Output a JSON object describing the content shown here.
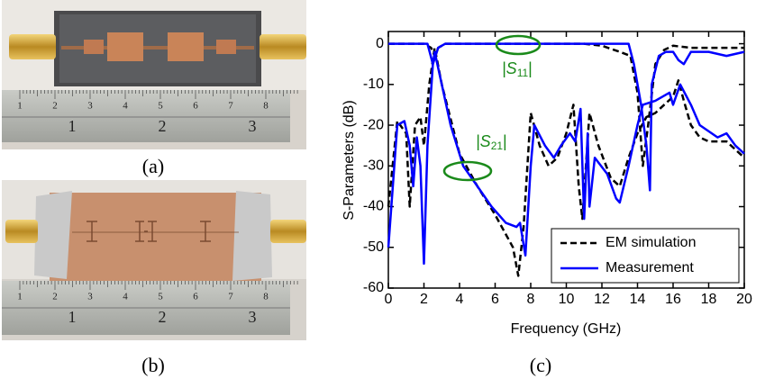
{
  "photos": [
    {
      "caption": "(a)",
      "ruler_cm": [
        "1",
        "2",
        "3",
        "4",
        "5",
        "6",
        "7",
        "8"
      ],
      "ruler_in": [
        "1",
        "2",
        "3"
      ]
    },
    {
      "caption": "(b)",
      "ruler_cm": [
        "1",
        "2",
        "3",
        "4",
        "5",
        "6",
        "7",
        "8"
      ],
      "ruler_in": [
        "1",
        "2",
        "3"
      ]
    }
  ],
  "chart_data": {
    "type": "line",
    "caption": "(c)",
    "x_label": "Frequency (GHz)",
    "y_label": "S-Parameters (dB)",
    "xlim": [
      0,
      20
    ],
    "ylim": [
      -60,
      3
    ],
    "xticks": [
      0,
      2,
      4,
      6,
      8,
      10,
      12,
      14,
      16,
      18,
      20
    ],
    "yticks": [
      -60,
      -50,
      -40,
      -30,
      -20,
      -10,
      0
    ],
    "legend": "lower right",
    "annotations": [
      {
        "prefix": "|S",
        "sub": "11",
        "suffix": "|",
        "color": "#1a8a1a"
      },
      {
        "prefix": "|S",
        "sub": "21",
        "suffix": "|",
        "color": "#1a8a1a"
      }
    ],
    "series": [
      {
        "name": "EM simulation",
        "color": "#000000",
        "dashed": true,
        "curves": [
          {
            "x": [
              0,
              1,
              2,
              2.4,
              2.6,
              2.8,
              3.2,
              5,
              8,
              11,
              12,
              13,
              13.6,
              14,
              14.3,
              14.6,
              15,
              15.5,
              16,
              17,
              18,
              19,
              20
            ],
            "values": [
              0,
              0,
              0,
              -1,
              -3,
              -1,
              0,
              0,
              0,
              0,
              -0.5,
              -2,
              -3,
              -12,
              -30,
              -20,
              -5,
              -1.5,
              -0.5,
              -1,
              -1,
              -1,
              -1
            ]
          },
          {
            "x": [
              0,
              0.5,
              1,
              1.2,
              1.5,
              1.8,
              2,
              2.3,
              2.6,
              3,
              4,
              5,
              6,
              7,
              7.3,
              7.6,
              8,
              8.5,
              9,
              9.5,
              10,
              10.4,
              10.7,
              10.9,
              11.3,
              11.8,
              12.5,
              13,
              13.5,
              14,
              14.5,
              15,
              15.5,
              16,
              16.3,
              16.6,
              17,
              17.5,
              18,
              19,
              20
            ],
            "values": [
              -40,
              -19,
              -22,
              -40,
              -20,
              -18,
              -25,
              -10,
              -1,
              -10,
              -27,
              -35,
              -42,
              -50,
              -57,
              -45,
              -17,
              -25,
              -30,
              -28,
              -22,
              -15,
              -35,
              -43,
              -17,
              -25,
              -33,
              -35,
              -28,
              -22,
              -18,
              -17,
              -15,
              -13,
              -9,
              -14,
              -20,
              -23,
              -24,
              -24,
              -28
            ]
          }
        ]
      },
      {
        "name": "Measurement",
        "color": "#0000ff",
        "dashed": false,
        "curves": [
          {
            "x": [
              0,
              1,
              2,
              2.2,
              2.5,
              2.8,
              3.2,
              6,
              10,
              13.5,
              13.8,
              14.2,
              14.5,
              14.7,
              14.8,
              15.2,
              15.6,
              16,
              16.3,
              16.6,
              17,
              18,
              19,
              20
            ],
            "values": [
              0,
              0,
              0,
              0,
              -5,
              -1,
              0,
              0,
              0,
              0,
              -5,
              -15,
              -25,
              -36,
              -10,
              -3,
              -2,
              -2,
              -4,
              -5,
              -2,
              -2,
              -3,
              -2
            ]
          },
          {
            "x": [
              0,
              0.5,
              0.9,
              1.2,
              1.4,
              1.6,
              1.8,
              2,
              2.2,
              2.5,
              2.6,
              3,
              3.5,
              4.2,
              5,
              5.8,
              6.6,
              7.2,
              7.4,
              7.7,
              8,
              8.2,
              8.8,
              9.3,
              9.7,
              10.2,
              10.5,
              10.8,
              11,
              11.2,
              11.3,
              11.6,
              12.3,
              12.8,
              13,
              13.5,
              14,
              14.3,
              15,
              15.8,
              16,
              16.4,
              17,
              17.5,
              18.5,
              19,
              19.5,
              20
            ],
            "values": [
              -50,
              -20,
              -19,
              -25,
              -35,
              -23,
              -30,
              -54,
              -25,
              -5,
              -2,
              -10,
              -20,
              -30,
              -35,
              -40,
              -44,
              -45,
              -44,
              -52,
              -30,
              -20,
              -25,
              -28,
              -25,
              -22,
              -24,
              -16,
              -43,
              -22,
              -40,
              -28,
              -32,
              -38,
              -39,
              -30,
              -20,
              -15,
              -14,
              -12,
              -15,
              -10,
              -15,
              -20,
              -23,
              -22,
              -25,
              -27
            ]
          }
        ]
      }
    ]
  }
}
